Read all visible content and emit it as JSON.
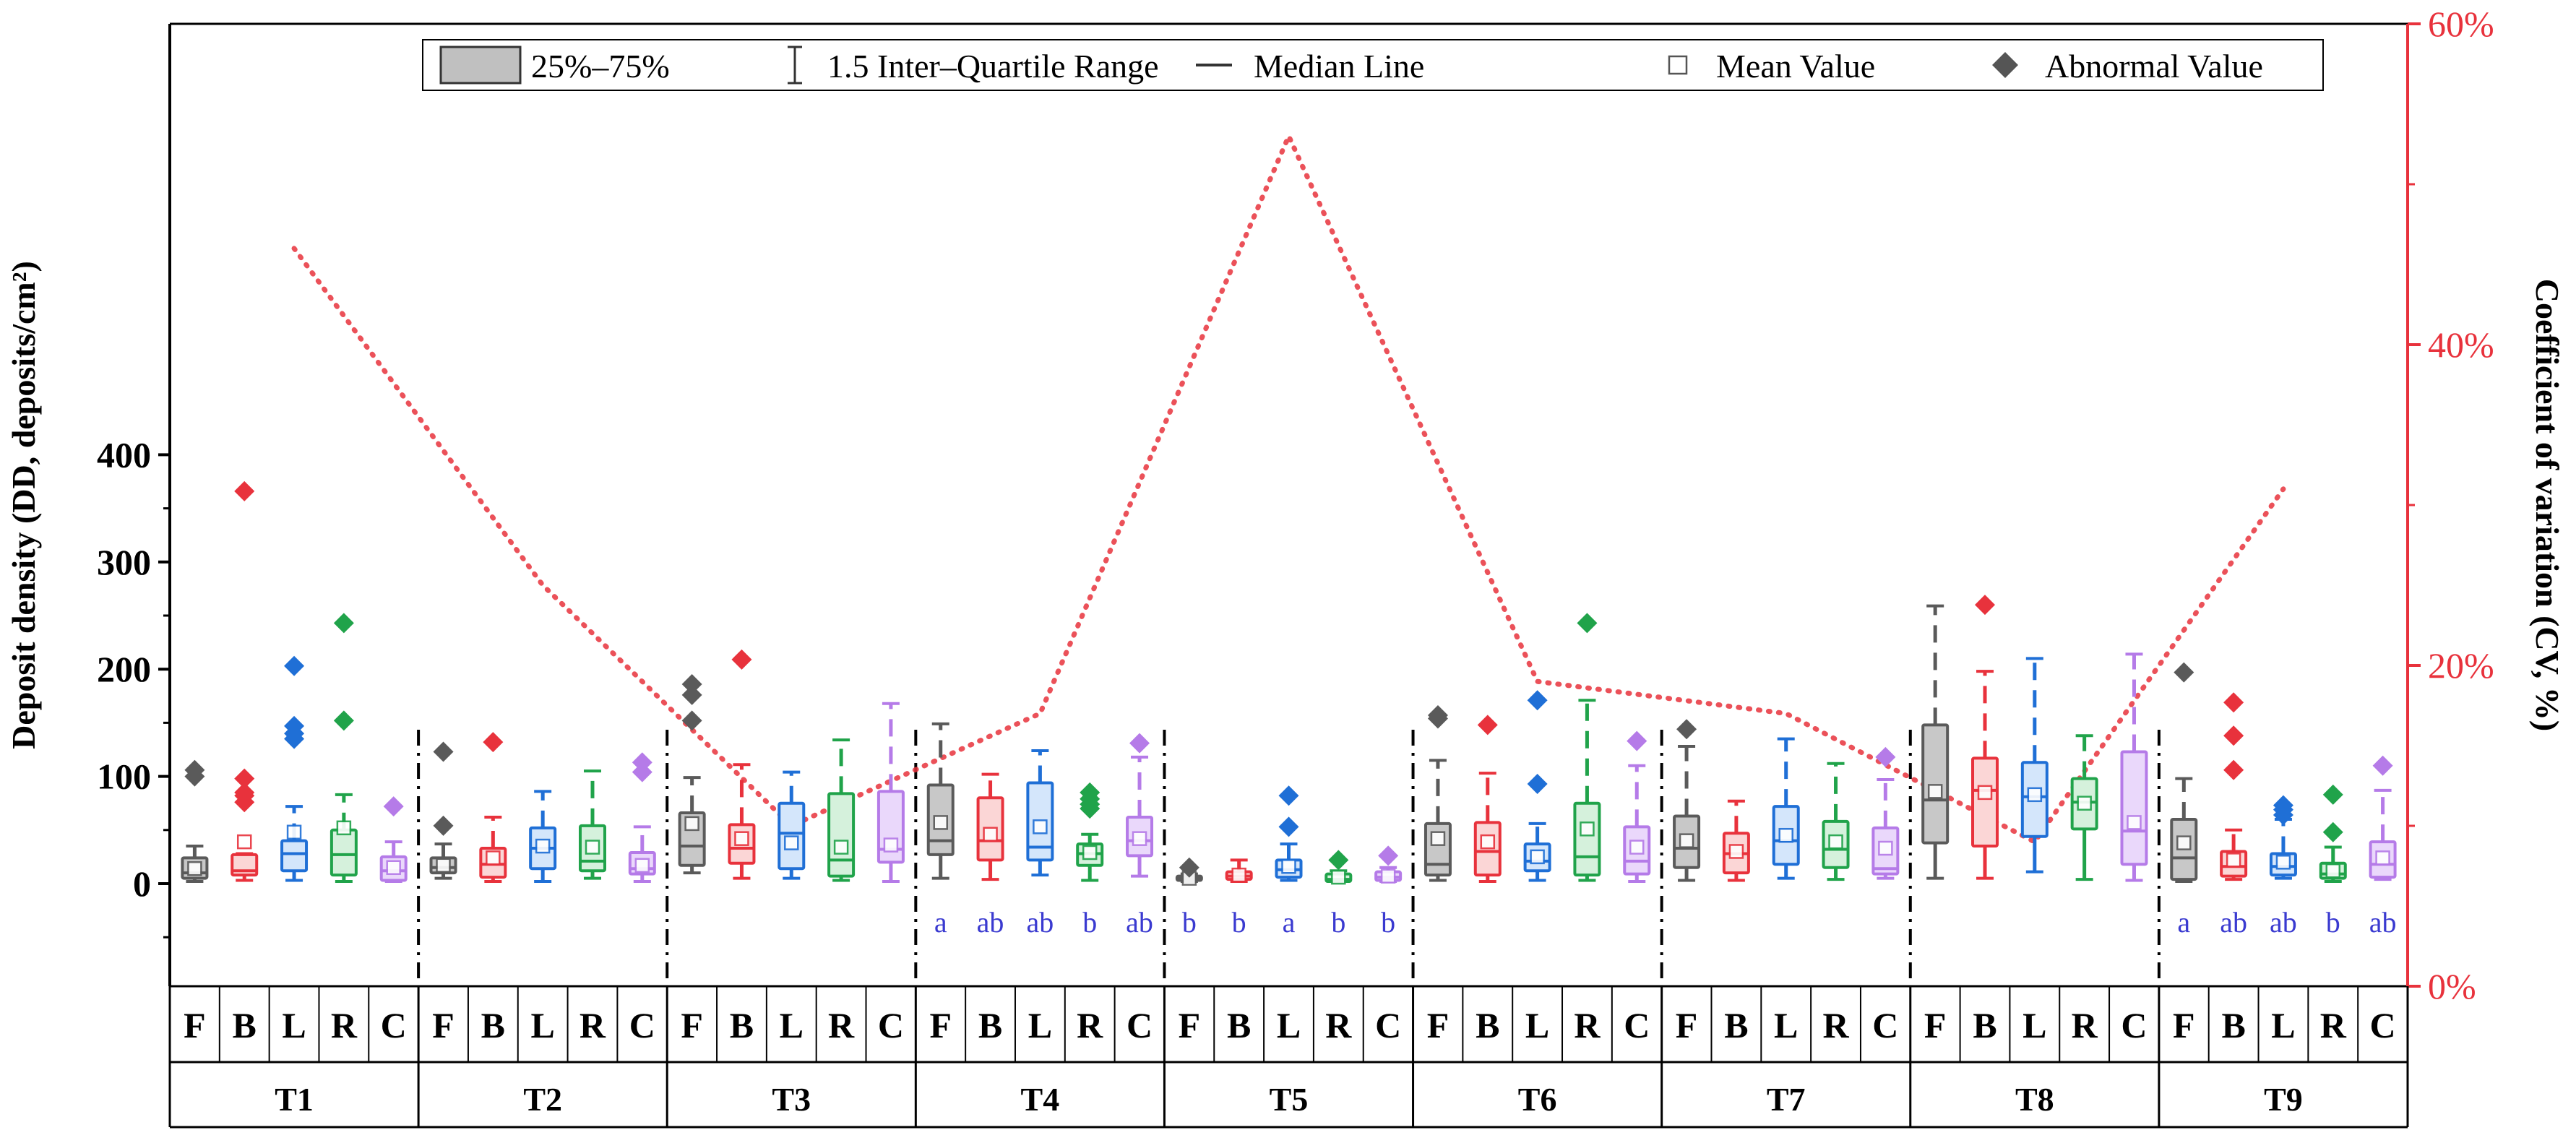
{
  "chart_data": {
    "type": "box",
    "ylabel": "Deposit density (DD, deposits/cm²)",
    "y2label": "Coefficient of variation (CV, %)",
    "ylim": [
      -50,
      400
    ],
    "yticks": [
      0,
      100,
      200,
      300,
      400
    ],
    "y2lim": [
      0,
      60
    ],
    "y2ticks": [
      "0%",
      "20%",
      "40%",
      "60%"
    ],
    "legend": {
      "position": "top-center",
      "items": [
        {
          "key": "box",
          "label": "25%–75%"
        },
        {
          "key": "whisker",
          "label": "1.5 Inter–Quartile Range"
        },
        {
          "key": "median",
          "label": "Median Line"
        },
        {
          "key": "mean",
          "label": "Mean Value"
        },
        {
          "key": "outlier",
          "label": "Abnormal Value"
        }
      ]
    },
    "positions": [
      "F",
      "B",
      "L",
      "R",
      "C"
    ],
    "position_colors": {
      "F": "#5a5a5a",
      "B": "#e8323c",
      "L": "#1f6fd6",
      "R": "#20a34a",
      "C": "#b57be8"
    },
    "position_fills": {
      "F": "#c8c8c8",
      "B": "#fbd6d6",
      "L": "#d4e6fb",
      "R": "#d5f1dc",
      "C": "#ead8fb"
    },
    "cv_line_color": "#e8323c",
    "groups": [
      {
        "name": "T1",
        "cv": 46,
        "letters": [
          "",
          "",
          "",
          "",
          ""
        ],
        "boxes": [
          {
            "pos": "F",
            "lw": 2,
            "q1": 5,
            "med": 10,
            "q3": 24,
            "uw": 35,
            "mean": 14,
            "outliers": [
              100,
              106
            ]
          },
          {
            "pos": "B",
            "lw": 3,
            "q1": 8,
            "med": 12,
            "q3": 27,
            "uw": 28,
            "mean": 39,
            "outliers": [
              76,
              82,
              85,
              98,
              366
            ]
          },
          {
            "pos": "L",
            "lw": 3,
            "q1": 12,
            "med": 28,
            "q3": 40,
            "uw": 72,
            "mean": 48,
            "outliers": [
              135,
              140,
              147,
              203
            ]
          },
          {
            "pos": "R",
            "lw": 2,
            "q1": 8,
            "med": 27,
            "q3": 50,
            "uw": 83,
            "mean": 52,
            "outliers": [
              152,
              243
            ]
          },
          {
            "pos": "C",
            "lw": 2,
            "q1": 3,
            "med": 12,
            "q3": 25,
            "uw": 39,
            "mean": 15,
            "outliers": [
              72
            ]
          }
        ]
      },
      {
        "name": "T2",
        "cv": 25,
        "letters": [
          "",
          "",
          "",
          "",
          ""
        ],
        "boxes": [
          {
            "pos": "F",
            "lw": 5,
            "q1": 10,
            "med": 15,
            "q3": 24,
            "uw": 37,
            "mean": 17,
            "outliers": [
              54,
              123
            ]
          },
          {
            "pos": "B",
            "lw": 2,
            "q1": 6,
            "med": 18,
            "q3": 33,
            "uw": 62,
            "mean": 24,
            "outliers": [
              132
            ]
          },
          {
            "pos": "L",
            "lw": 2,
            "q1": 14,
            "med": 33,
            "q3": 52,
            "uw": 86,
            "mean": 35,
            "outliers": []
          },
          {
            "pos": "R",
            "lw": 5,
            "q1": 12,
            "med": 21,
            "q3": 54,
            "uw": 105,
            "mean": 34,
            "outliers": []
          },
          {
            "pos": "C",
            "lw": 2,
            "q1": 9,
            "med": 14,
            "q3": 29,
            "uw": 53,
            "mean": 17,
            "outliers": [
              104,
              113
            ]
          }
        ]
      },
      {
        "name": "T3",
        "cv": 10,
        "letters": [
          "",
          "",
          "",
          "",
          ""
        ],
        "boxes": [
          {
            "pos": "F",
            "lw": 10,
            "q1": 17,
            "med": 35,
            "q3": 66,
            "uw": 99,
            "mean": 56,
            "outliers": [
              152,
              176,
              186
            ]
          },
          {
            "pos": "B",
            "lw": 5,
            "q1": 19,
            "med": 33,
            "q3": 55,
            "uw": 111,
            "mean": 42,
            "outliers": [
              209
            ]
          },
          {
            "pos": "L",
            "lw": 5,
            "q1": 14,
            "med": 47,
            "q3": 75,
            "uw": 104,
            "mean": 38,
            "outliers": []
          },
          {
            "pos": "R",
            "lw": 3,
            "q1": 7,
            "med": 22,
            "q3": 84,
            "uw": 134,
            "mean": 34,
            "outliers": []
          },
          {
            "pos": "C",
            "lw": 2,
            "q1": 20,
            "med": 32,
            "q3": 86,
            "uw": 168,
            "mean": 36,
            "outliers": []
          }
        ]
      },
      {
        "name": "T4",
        "cv": 17,
        "letters": [
          "a",
          "ab",
          "ab",
          "b",
          "ab"
        ],
        "boxes": [
          {
            "pos": "F",
            "lw": 5,
            "q1": 27,
            "med": 40,
            "q3": 92,
            "uw": 149,
            "mean": 57,
            "outliers": []
          },
          {
            "pos": "B",
            "lw": 4,
            "q1": 22,
            "med": 40,
            "q3": 80,
            "uw": 102,
            "mean": 46,
            "outliers": []
          },
          {
            "pos": "L",
            "lw": 8,
            "q1": 22,
            "med": 34,
            "q3": 94,
            "uw": 124,
            "mean": 53,
            "outliers": []
          },
          {
            "pos": "R",
            "lw": 3,
            "q1": 17,
            "med": 28,
            "q3": 37,
            "uw": 46,
            "mean": 29,
            "outliers": [
              70,
              74,
              79,
              85
            ]
          },
          {
            "pos": "C",
            "lw": 7,
            "q1": 26,
            "med": 40,
            "q3": 62,
            "uw": 118,
            "mean": 42,
            "outliers": [
              131
            ]
          }
        ]
      },
      {
        "name": "T5",
        "cv": 53,
        "letters": [
          "b",
          "b",
          "a",
          "b",
          "b"
        ],
        "boxes": [
          {
            "pos": "F",
            "lw": 2,
            "q1": 3,
            "med": 5,
            "q3": 7,
            "uw": 9,
            "mean": 5,
            "outliers": [
              15
            ]
          },
          {
            "pos": "B",
            "lw": 2,
            "q1": 4,
            "med": 7,
            "q3": 11,
            "uw": 22,
            "mean": 8,
            "outliers": []
          },
          {
            "pos": "L",
            "lw": 3,
            "q1": 6,
            "med": 13,
            "q3": 22,
            "uw": 37,
            "mean": 16,
            "outliers": [
              53,
              82
            ]
          },
          {
            "pos": "R",
            "lw": 2,
            "q1": 2,
            "med": 4,
            "q3": 9,
            "uw": 12,
            "mean": 6,
            "outliers": [
              22
            ]
          },
          {
            "pos": "C",
            "lw": 2,
            "q1": 3,
            "med": 6,
            "q3": 11,
            "uw": 15,
            "mean": 7,
            "outliers": [
              26
            ]
          }
        ]
      },
      {
        "name": "T6",
        "cv": 19,
        "letters": [
          "",
          "",
          "",
          "",
          ""
        ],
        "boxes": [
          {
            "pos": "F",
            "lw": 3,
            "q1": 8,
            "med": 18,
            "q3": 56,
            "uw": 115,
            "mean": 42,
            "outliers": [
              154,
              157
            ]
          },
          {
            "pos": "B",
            "lw": 2,
            "q1": 8,
            "med": 30,
            "q3": 57,
            "uw": 103,
            "mean": 39,
            "outliers": [
              148
            ]
          },
          {
            "pos": "L",
            "lw": 3,
            "q1": 12,
            "med": 21,
            "q3": 37,
            "uw": 56,
            "mean": 25,
            "outliers": [
              93,
              171
            ]
          },
          {
            "pos": "R",
            "lw": 3,
            "q1": 8,
            "med": 25,
            "q3": 75,
            "uw": 171,
            "mean": 51,
            "outliers": [
              243
            ]
          },
          {
            "pos": "C",
            "lw": 2,
            "q1": 9,
            "med": 21,
            "q3": 53,
            "uw": 110,
            "mean": 34,
            "outliers": [
              133
            ]
          }
        ]
      },
      {
        "name": "T7",
        "cv": 17,
        "letters": [
          "",
          "",
          "",
          "",
          ""
        ],
        "boxes": [
          {
            "pos": "F",
            "lw": 3,
            "q1": 15,
            "med": 33,
            "q3": 63,
            "uw": 128,
            "mean": 40,
            "outliers": [
              144
            ]
          },
          {
            "pos": "B",
            "lw": 3,
            "q1": 10,
            "med": 28,
            "q3": 47,
            "uw": 77,
            "mean": 30,
            "outliers": []
          },
          {
            "pos": "L",
            "lw": 5,
            "q1": 18,
            "med": 40,
            "q3": 72,
            "uw": 135,
            "mean": 45,
            "outliers": []
          },
          {
            "pos": "R",
            "lw": 4,
            "q1": 15,
            "med": 32,
            "q3": 58,
            "uw": 112,
            "mean": 39,
            "outliers": []
          },
          {
            "pos": "C",
            "lw": 5,
            "q1": 9,
            "med": 14,
            "q3": 52,
            "uw": 97,
            "mean": 33,
            "outliers": [
              118
            ]
          }
        ]
      },
      {
        "name": "T8",
        "cv": 9,
        "letters": [
          "",
          "",
          "",
          "",
          ""
        ],
        "boxes": [
          {
            "pos": "F",
            "lw": 5,
            "q1": 38,
            "med": 78,
            "q3": 148,
            "uw": 259,
            "mean": 86,
            "outliers": []
          },
          {
            "pos": "B",
            "lw": 5,
            "q1": 35,
            "med": 87,
            "q3": 117,
            "uw": 198,
            "mean": 85,
            "outliers": [
              260
            ]
          },
          {
            "pos": "L",
            "lw": 11,
            "q1": 44,
            "med": 81,
            "q3": 113,
            "uw": 210,
            "mean": 83,
            "outliers": []
          },
          {
            "pos": "R",
            "lw": 4,
            "q1": 51,
            "med": 76,
            "q3": 98,
            "uw": 138,
            "mean": 75,
            "outliers": []
          },
          {
            "pos": "C",
            "lw": 3,
            "q1": 18,
            "med": 49,
            "q3": 123,
            "uw": 214,
            "mean": 57,
            "outliers": []
          }
        ]
      },
      {
        "name": "T9",
        "cv": 31,
        "letters": [
          "a",
          "ab",
          "ab",
          "b",
          "ab"
        ],
        "boxes": [
          {
            "pos": "F",
            "lw": 2,
            "q1": 4,
            "med": 24,
            "q3": 60,
            "uw": 98,
            "mean": 38,
            "outliers": [
              197
            ]
          },
          {
            "pos": "B",
            "lw": 4,
            "q1": 7,
            "med": 16,
            "q3": 30,
            "uw": 50,
            "mean": 22,
            "outliers": [
              106,
              138,
              169
            ]
          },
          {
            "pos": "L",
            "lw": 5,
            "q1": 8,
            "med": 16,
            "q3": 28,
            "uw": 60,
            "mean": 20,
            "outliers": [
              64,
              69,
              73
            ]
          },
          {
            "pos": "R",
            "lw": 2,
            "q1": 5,
            "med": 9,
            "q3": 19,
            "uw": 34,
            "mean": 12,
            "outliers": [
              48,
              83
            ]
          },
          {
            "pos": "C",
            "lw": 4,
            "q1": 6,
            "med": 18,
            "q3": 39,
            "uw": 87,
            "mean": 24,
            "outliers": [
              110
            ]
          }
        ]
      }
    ]
  }
}
